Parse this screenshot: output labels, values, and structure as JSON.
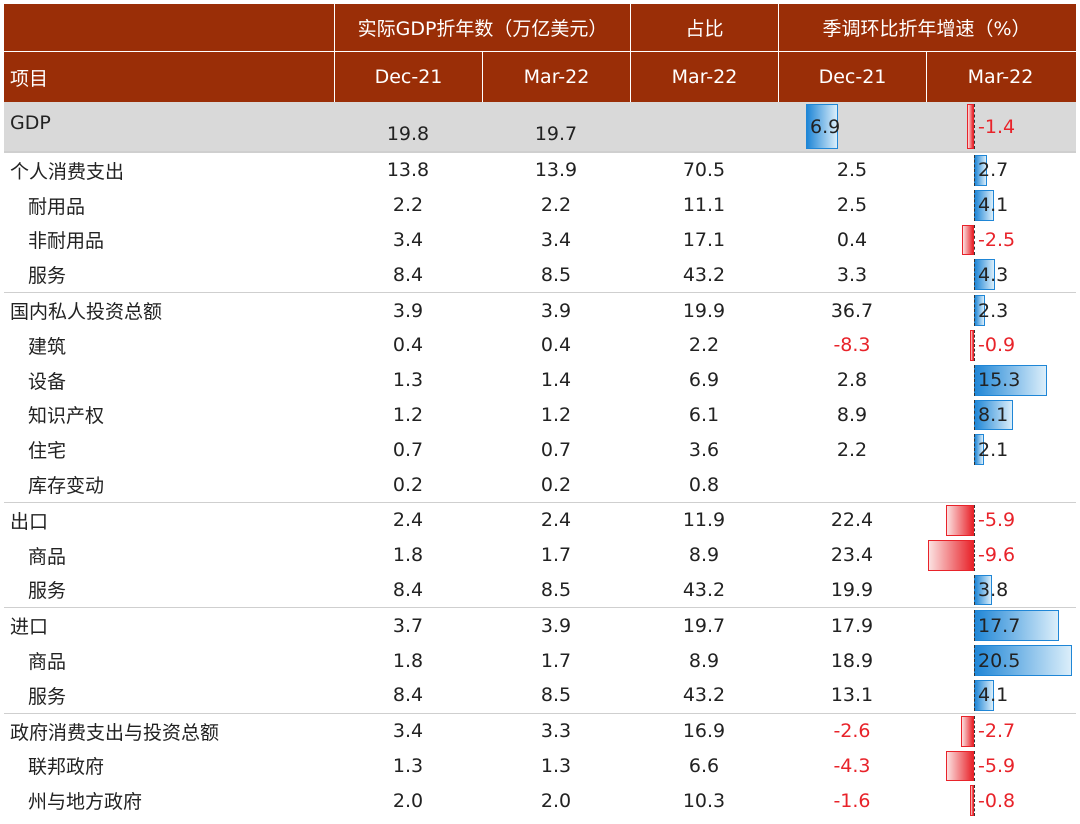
{
  "header": {
    "group_real_gdp": "实际GDP折年数（万亿美元）",
    "group_share": "占比",
    "group_growth": "季调环比折年增速（%）",
    "item_label": "项目",
    "col_dec21_a": "Dec-21",
    "col_mar22_a": "Mar-22",
    "col_mar22_share": "Mar-22",
    "col_dec21_g": "Dec-21",
    "col_mar22_g": "Mar-22"
  },
  "rows": [
    {
      "label": "GDP",
      "dec21": "19.8",
      "mar22": "19.7",
      "share": "",
      "g_dec21": "6.9",
      "g_mar22": "-1.4"
    },
    {
      "label": "个人消费支出",
      "dec21": "13.8",
      "mar22": "13.9",
      "share": "70.5",
      "g_dec21": "2.5",
      "g_mar22": "2.7"
    },
    {
      "label": "耐用品",
      "dec21": "2.2",
      "mar22": "2.2",
      "share": "11.1",
      "g_dec21": "2.5",
      "g_mar22": "4.1"
    },
    {
      "label": "非耐用品",
      "dec21": "3.4",
      "mar22": "3.4",
      "share": "17.1",
      "g_dec21": "0.4",
      "g_mar22": "-2.5"
    },
    {
      "label": "服务",
      "dec21": "8.4",
      "mar22": "8.5",
      "share": "43.2",
      "g_dec21": "3.3",
      "g_mar22": "4.3"
    },
    {
      "label": "国内私人投资总额",
      "dec21": "3.9",
      "mar22": "3.9",
      "share": "19.9",
      "g_dec21": "36.7",
      "g_mar22": "2.3"
    },
    {
      "label": "建筑",
      "dec21": "0.4",
      "mar22": "0.4",
      "share": "2.2",
      "g_dec21": "-8.3",
      "g_mar22": "-0.9"
    },
    {
      "label": "设备",
      "dec21": "1.3",
      "mar22": "1.4",
      "share": "6.9",
      "g_dec21": "2.8",
      "g_mar22": "15.3"
    },
    {
      "label": "知识产权",
      "dec21": "1.2",
      "mar22": "1.2",
      "share": "6.1",
      "g_dec21": "8.9",
      "g_mar22": "8.1"
    },
    {
      "label": "住宅",
      "dec21": "0.7",
      "mar22": "0.7",
      "share": "3.6",
      "g_dec21": "2.2",
      "g_mar22": "2.1"
    },
    {
      "label": "库存变动",
      "dec21": "0.2",
      "mar22": "0.2",
      "share": "0.8",
      "g_dec21": "",
      "g_mar22": ""
    },
    {
      "label": "出口",
      "dec21": "2.4",
      "mar22": "2.4",
      "share": "11.9",
      "g_dec21": "22.4",
      "g_mar22": "-5.9"
    },
    {
      "label": "商品",
      "dec21": "1.8",
      "mar22": "1.7",
      "share": "8.9",
      "g_dec21": "23.4",
      "g_mar22": "-9.6"
    },
    {
      "label": "服务",
      "dec21": "8.4",
      "mar22": "8.5",
      "share": "43.2",
      "g_dec21": "19.9",
      "g_mar22": "3.8"
    },
    {
      "label": "进口",
      "dec21": "3.7",
      "mar22": "3.9",
      "share": "19.7",
      "g_dec21": "17.9",
      "g_mar22": "17.7"
    },
    {
      "label": "商品",
      "dec21": "1.8",
      "mar22": "1.7",
      "share": "8.9",
      "g_dec21": "18.9",
      "g_mar22": "20.5"
    },
    {
      "label": "服务",
      "dec21": "8.4",
      "mar22": "8.5",
      "share": "43.2",
      "g_dec21": "13.1",
      "g_mar22": "4.1"
    },
    {
      "label": "政府消费支出与投资总额",
      "dec21": "3.4",
      "mar22": "3.3",
      "share": "16.9",
      "g_dec21": "-2.6",
      "g_mar22": "-2.7"
    },
    {
      "label": "联邦政府",
      "dec21": "1.3",
      "mar22": "1.3",
      "share": "6.6",
      "g_dec21": "-4.3",
      "g_mar22": "-5.9"
    },
    {
      "label": "州与地方政府",
      "dec21": "2.0",
      "mar22": "2.0",
      "share": "10.3",
      "g_dec21": "-1.6",
      "g_mar22": "-0.8"
    }
  ],
  "colors": {
    "header_bg": "#9a2e07",
    "gdp_row_bg": "#d9d9d9",
    "positive_bar": "#1f86d6",
    "negative_bar": "#e8232a",
    "negative_text": "#e8232a"
  }
}
